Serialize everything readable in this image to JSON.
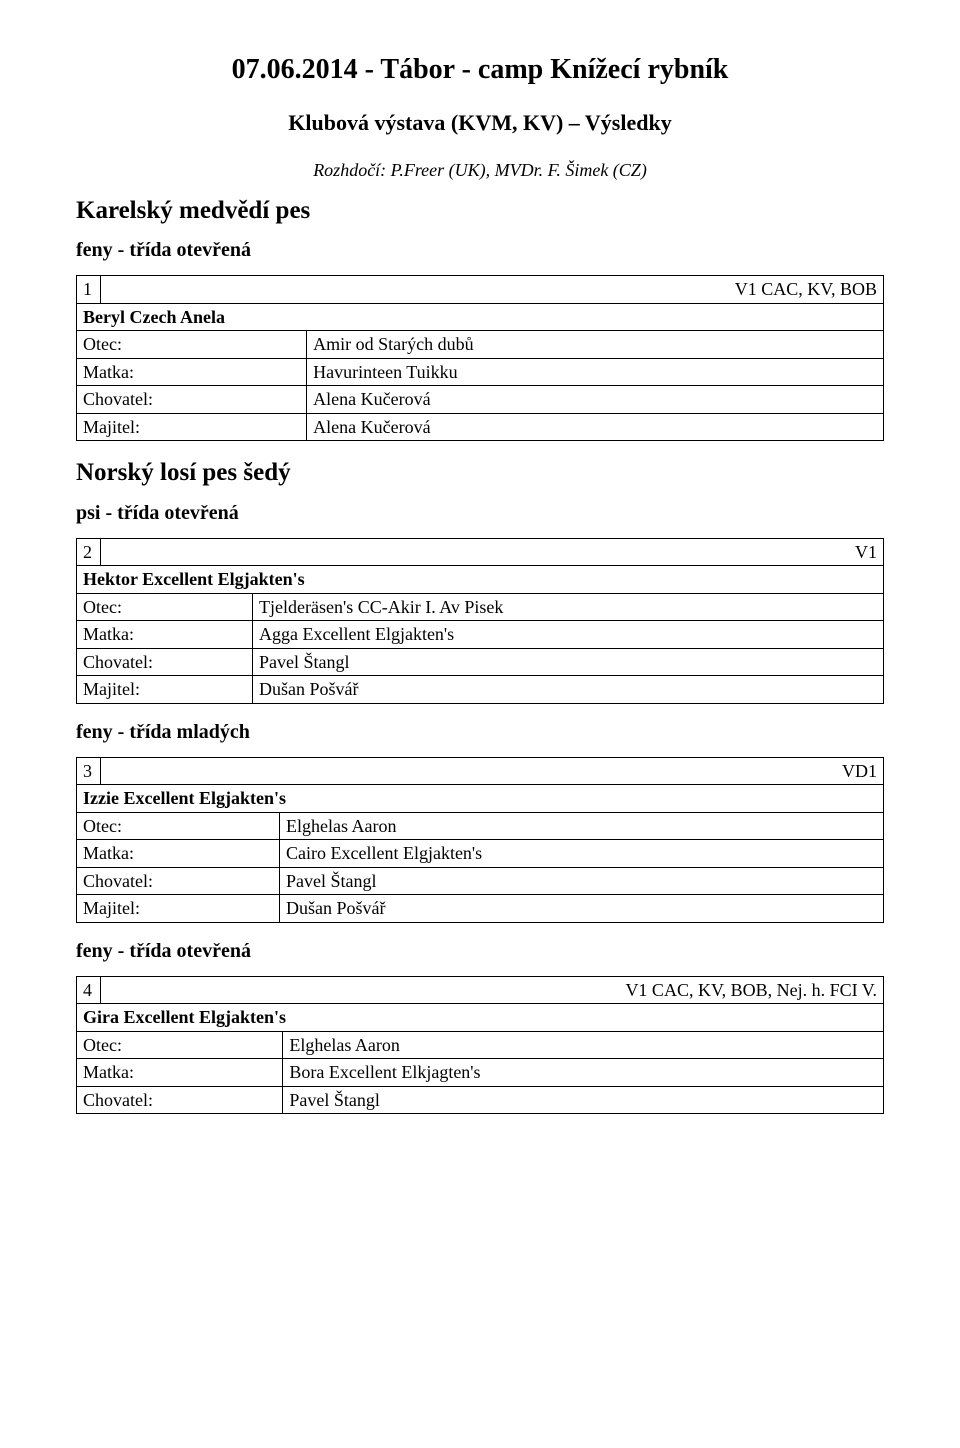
{
  "title": "07.06.2014 - Tábor - camp Knížecí rybník",
  "subtitle": "Klubová výstava (KVM, KV) – Výsledky",
  "judges": "Rozhdočí: P.Freer (UK), MVDr. F. Šimek (CZ)",
  "sections": [
    {
      "breed": "Karelský medvědí pes",
      "classes": [
        {
          "heading": "feny - třída otevřená",
          "entries": [
            {
              "num": "1",
              "award": "V1 CAC, KV, BOB",
              "dog": "Beryl Czech Anela",
              "rows": [
                {
                  "label": "Otec:",
                  "value": "Amir od Starých dubů"
                },
                {
                  "label": "Matka:",
                  "value": "Havurinteen Tuikku"
                },
                {
                  "label": "Chovatel:",
                  "value": "Alena Kučerová"
                },
                {
                  "label": "Majitel:",
                  "value": "Alena Kučerová"
                }
              ]
            }
          ]
        }
      ]
    },
    {
      "breed": "Norský losí pes šedý",
      "classes": [
        {
          "heading": "psi - třída otevřená",
          "entries": [
            {
              "num": "2",
              "award": "V1",
              "dog": "Hektor Excellent Elgjakten's",
              "rows": [
                {
                  "label": "Otec:",
                  "value": "Tjelderäsen's CC-Akir I. Av Pisek"
                },
                {
                  "label": "Matka:",
                  "value": "Agga Excellent Elgjakten's"
                },
                {
                  "label": "Chovatel:",
                  "value": "Pavel Štangl"
                },
                {
                  "label": "Majitel:",
                  "value": "Dušan Pošvář"
                }
              ]
            }
          ]
        },
        {
          "heading": "feny - třída mladých",
          "entries": [
            {
              "num": "3",
              "award": "VD1",
              "dog": "Izzie Excellent Elgjakten's",
              "rows": [
                {
                  "label": "Otec:",
                  "value": "Elghelas Aaron"
                },
                {
                  "label": "Matka:",
                  "value": "Cairo Excellent Elgjakten's"
                },
                {
                  "label": "Chovatel:",
                  "value": "Pavel Štangl"
                },
                {
                  "label": "Majitel:",
                  "value": "Dušan Pošvář"
                }
              ]
            }
          ]
        },
        {
          "heading": "feny - třída otevřená",
          "entries": [
            {
              "num": "4",
              "award": "V1 CAC, KV, BOB, Nej. h. FCI V.",
              "dog": "Gira Excellent Elgjakten's",
              "rows": [
                {
                  "label": "Otec:",
                  "value": "Elghelas Aaron"
                },
                {
                  "label": "Matka:",
                  "value": "Bora Excellent Elkjagten's"
                },
                {
                  "label": "Chovatel:",
                  "value": "Pavel Štangl"
                }
              ]
            }
          ]
        }
      ]
    }
  ]
}
